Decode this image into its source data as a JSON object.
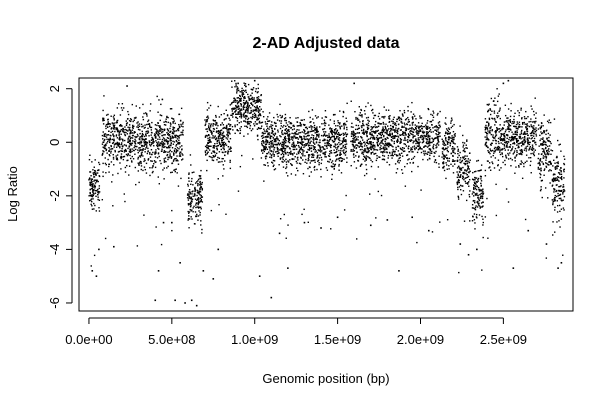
{
  "chart_data": {
    "type": "scatter",
    "title": "2-AD Adjusted data",
    "xlabel": "Genomic position (bp)",
    "ylabel": "Log Ratio",
    "xlim": [
      -60000000,
      2920000000
    ],
    "ylim": [
      -6.3,
      2.4
    ],
    "x_ticks": [
      0,
      500000000,
      1000000000,
      1500000000,
      2000000000,
      2500000000
    ],
    "x_tick_labels": [
      "0.0e+00",
      "5.0e+08",
      "1.0e+09",
      "1.5e+09",
      "2.0e+09",
      "2.5e+09"
    ],
    "y_ticks": [
      -6,
      -4,
      -2,
      0,
      2
    ],
    "y_tick_labels": [
      "-6",
      "-4",
      "-2",
      "0",
      "2"
    ],
    "grid": false,
    "segments": [
      {
        "x_start": 0,
        "x_end": 65000000,
        "level": -1.7,
        "sd": 0.45
      },
      {
        "x_start": 80000000,
        "x_end": 290000000,
        "level": 0.15,
        "sd": 0.55
      },
      {
        "x_start": 290000000,
        "x_end": 570000000,
        "level": 0.1,
        "sd": 0.55
      },
      {
        "x_start": 595000000,
        "x_end": 685000000,
        "level": -2.0,
        "sd": 0.5
      },
      {
        "x_start": 700000000,
        "x_end": 860000000,
        "level": 0.15,
        "sd": 0.5
      },
      {
        "x_start": 860000000,
        "x_end": 1040000000,
        "level": 1.3,
        "sd": 0.45
      },
      {
        "x_start": 1040000000,
        "x_end": 1560000000,
        "level": 0.0,
        "sd": 0.5
      },
      {
        "x_start": 1580000000,
        "x_end": 2120000000,
        "level": 0.15,
        "sd": 0.5
      },
      {
        "x_start": 2130000000,
        "x_end": 2210000000,
        "level": -0.1,
        "sd": 0.45
      },
      {
        "x_start": 2220000000,
        "x_end": 2300000000,
        "level": -1.0,
        "sd": 0.55
      },
      {
        "x_start": 2310000000,
        "x_end": 2380000000,
        "level": -2.0,
        "sd": 0.6
      },
      {
        "x_start": 2390000000,
        "x_end": 2480000000,
        "level": 0.3,
        "sd": 0.65
      },
      {
        "x_start": 2480000000,
        "x_end": 2700000000,
        "level": 0.15,
        "sd": 0.55
      },
      {
        "x_start": 2710000000,
        "x_end": 2790000000,
        "level": -0.4,
        "sd": 0.6
      },
      {
        "x_start": 2795000000,
        "x_end": 2870000000,
        "level": -1.6,
        "sd": 0.7
      }
    ],
    "outliers": [
      {
        "x": 20000000,
        "y": -4.8
      },
      {
        "x": 45000000,
        "y": -5.0
      },
      {
        "x": 60000000,
        "y": -4.0
      },
      {
        "x": 150000000,
        "y": -3.9
      },
      {
        "x": 230000000,
        "y": 2.1
      },
      {
        "x": 400000000,
        "y": -5.9
      },
      {
        "x": 420000000,
        "y": -4.8
      },
      {
        "x": 450000000,
        "y": -3.0
      },
      {
        "x": 500000000,
        "y": -3.0
      },
      {
        "x": 550000000,
        "y": -4.5
      },
      {
        "x": 520000000,
        "y": -5.9
      },
      {
        "x": 580000000,
        "y": -6.0
      },
      {
        "x": 620000000,
        "y": -5.9
      },
      {
        "x": 650000000,
        "y": -6.1
      },
      {
        "x": 690000000,
        "y": -4.8
      },
      {
        "x": 750000000,
        "y": -5.1
      },
      {
        "x": 780000000,
        "y": -4.0
      },
      {
        "x": 900000000,
        "y": 2.2
      },
      {
        "x": 1000000000,
        "y": 2.3
      },
      {
        "x": 1030000000,
        "y": -5.0
      },
      {
        "x": 1100000000,
        "y": -5.8
      },
      {
        "x": 1150000000,
        "y": -3.4
      },
      {
        "x": 1200000000,
        "y": -4.7
      },
      {
        "x": 1300000000,
        "y": -3.0
      },
      {
        "x": 1400000000,
        "y": -3.2
      },
      {
        "x": 1500000000,
        "y": -2.8
      },
      {
        "x": 1600000000,
        "y": 2.2
      },
      {
        "x": 1700000000,
        "y": -3.1
      },
      {
        "x": 1800000000,
        "y": -2.9
      },
      {
        "x": 1870000000,
        "y": -4.8
      },
      {
        "x": 1950000000,
        "y": -2.8
      },
      {
        "x": 2050000000,
        "y": -3.3
      },
      {
        "x": 2240000000,
        "y": -3.8
      },
      {
        "x": 2290000000,
        "y": -4.2
      },
      {
        "x": 2340000000,
        "y": -4.0
      },
      {
        "x": 2500000000,
        "y": 2.2
      },
      {
        "x": 2530000000,
        "y": 2.3
      },
      {
        "x": 2560000000,
        "y": -4.7
      },
      {
        "x": 2650000000,
        "y": -3.3
      },
      {
        "x": 2760000000,
        "y": -3.8
      },
      {
        "x": 2830000000,
        "y": -4.7
      },
      {
        "x": 2850000000,
        "y": -4.5
      }
    ]
  }
}
